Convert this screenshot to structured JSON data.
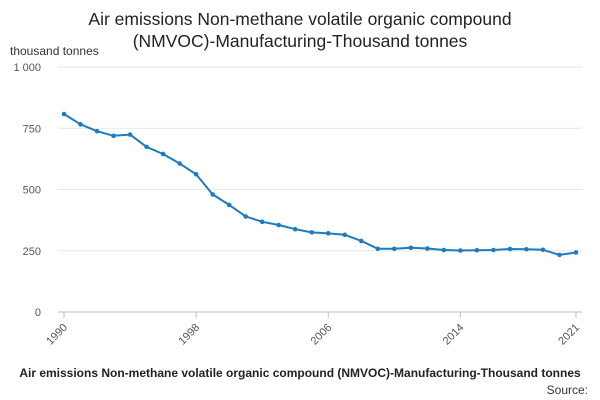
{
  "chart_data": {
    "type": "line",
    "title_lines": [
      "Air emissions Non-methane volatile organic compound",
      "(NMVOC)-Manufacturing-Thousand tonnes"
    ],
    "ylabel": "thousand tonnes",
    "xlabel": "",
    "x": [
      1990,
      1991,
      1992,
      1993,
      1994,
      1995,
      1996,
      1997,
      1998,
      1999,
      2000,
      2001,
      2002,
      2003,
      2004,
      2005,
      2006,
      2007,
      2008,
      2009,
      2010,
      2011,
      2012,
      2013,
      2014,
      2015,
      2016,
      2017,
      2018,
      2019,
      2020,
      2021
    ],
    "series": [
      {
        "name": "Air emissions Non-methane volatile organic compound (NMVOC)-Manufacturing-Thousand tonnes",
        "color": "#1f7bbf",
        "values": [
          808,
          766,
          738,
          719,
          724,
          674,
          645,
          606,
          562,
          480,
          437,
          390,
          368,
          355,
          338,
          325,
          321,
          315,
          290,
          258,
          258,
          262,
          259,
          253,
          251,
          252,
          253,
          257,
          256,
          254,
          233,
          243
        ]
      }
    ],
    "ylim": [
      0,
      1000
    ],
    "yticks": [
      0,
      250,
      500,
      750,
      1000
    ],
    "ytick_labels": [
      "0",
      "250",
      "500",
      "750",
      "1 000"
    ],
    "xticks": [
      1990,
      1998,
      2006,
      2014,
      2021
    ],
    "xtick_labels": [
      "1990",
      "1998",
      "2006",
      "2014",
      "2021"
    ],
    "grid": true,
    "legend_text": "Air emissions Non-methane volatile organic compound (NMVOC)-Manufacturing-Thousand tonnes",
    "source_label": "Source:"
  }
}
